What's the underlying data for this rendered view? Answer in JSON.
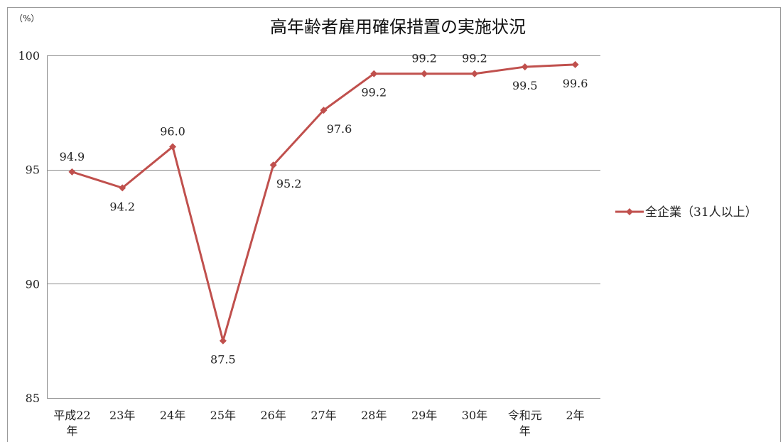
{
  "chart_data": {
    "type": "line",
    "title": "高年齢者雇用確保措置の実施状況",
    "unit_label": "（%）",
    "categories": [
      [
        "平成22",
        "年"
      ],
      [
        "23年"
      ],
      [
        "24年"
      ],
      [
        "25年"
      ],
      [
        "26年"
      ],
      [
        "27年"
      ],
      [
        "28年"
      ],
      [
        "29年"
      ],
      [
        "30年"
      ],
      [
        "令和元",
        "年"
      ],
      [
        "2年"
      ]
    ],
    "series": [
      {
        "name": "全企業（31人以上）",
        "color": "#c0504d",
        "marker": "diamond",
        "values": [
          94.9,
          94.2,
          96.0,
          87.5,
          95.2,
          97.6,
          99.2,
          99.2,
          99.2,
          99.5,
          99.6
        ],
        "labels": [
          "94.9",
          "94.2",
          "96.0",
          "87.5",
          "95.2",
          "97.6",
          "99.2",
          "99.2",
          "99.2",
          "99.5",
          "99.6"
        ]
      }
    ],
    "ylim": [
      85,
      100
    ],
    "yticks": [
      85,
      90,
      95,
      100
    ],
    "ytick_labels": [
      "85",
      "90",
      "95",
      "100"
    ],
    "grid": "horizontal",
    "legend_position": "right"
  }
}
